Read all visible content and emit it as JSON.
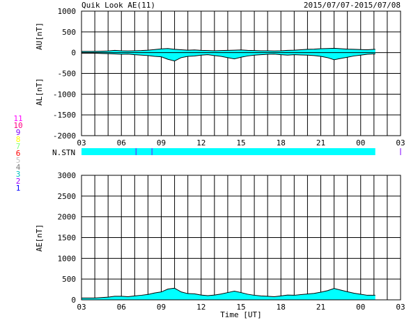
{
  "header": {
    "title": "Quik Look AE(11)",
    "date_range": "2015/07/07-2015/07/08"
  },
  "colors": {
    "fill": "#00ffff",
    "line": "#000000",
    "stn_bar": "#00ffff",
    "stn_tick": "#8000ff"
  },
  "station_legend": [
    {
      "label": "11",
      "color": "#ff00ff"
    },
    {
      "label": "10",
      "color": "#ff0080"
    },
    {
      "label": "9",
      "color": "#8000ff"
    },
    {
      "label": "8",
      "color": "#ffff00"
    },
    {
      "label": "7",
      "color": "#80ff80"
    },
    {
      "label": "6",
      "color": "#ff0000"
    },
    {
      "label": "5",
      "color": "#c0c0c0"
    },
    {
      "label": "4",
      "color": "#808080"
    },
    {
      "label": "3",
      "color": "#00c0c0"
    },
    {
      "label": "2",
      "color": "#a000ff"
    },
    {
      "label": "1",
      "color": "#0000ff"
    }
  ],
  "n_stn": {
    "label": "N.STN",
    "end_hour": 25.1,
    "tick_hours": [
      7.1,
      8.3,
      27.0
    ]
  },
  "chart_data": [
    {
      "type": "area",
      "name": "AU/AL",
      "ylabel_upper": "AU[nT]",
      "ylabel_lower": "AL[nT]",
      "xlabel": "",
      "xlim": [
        3,
        27
      ],
      "ylim": [
        -2000,
        1000
      ],
      "yticks": [
        1000,
        500,
        0,
        -500,
        -1000,
        -1500,
        -2000
      ],
      "xtick_labels": [
        "03",
        "06",
        "09",
        "12",
        "15",
        "18",
        "21",
        "00",
        "03"
      ],
      "grid": true,
      "x_hours": [
        3,
        3.5,
        4,
        4.5,
        5,
        5.5,
        6,
        6.5,
        7,
        7.5,
        8,
        8.5,
        9,
        9.5,
        10,
        10.5,
        11,
        11.5,
        12,
        12.5,
        13,
        13.5,
        14,
        14.5,
        15,
        15.5,
        16,
        16.5,
        17,
        17.5,
        18,
        18.5,
        19,
        19.5,
        20,
        20.5,
        21,
        21.5,
        22,
        22.5,
        23,
        23.5,
        24,
        24.5,
        25,
        25.1
      ],
      "au": [
        30,
        30,
        30,
        35,
        40,
        55,
        45,
        40,
        45,
        50,
        60,
        75,
        90,
        100,
        80,
        70,
        60,
        65,
        55,
        50,
        45,
        50,
        55,
        60,
        65,
        55,
        50,
        45,
        45,
        40,
        45,
        55,
        60,
        70,
        80,
        85,
        95,
        100,
        105,
        95,
        85,
        80,
        75,
        70,
        80,
        80
      ],
      "al": [
        -15,
        -15,
        -15,
        -20,
        -25,
        -30,
        -40,
        -35,
        -50,
        -60,
        -70,
        -90,
        -100,
        -160,
        -200,
        -120,
        -90,
        -80,
        -60,
        -50,
        -70,
        -90,
        -120,
        -150,
        -110,
        -80,
        -60,
        -50,
        -40,
        -35,
        -50,
        -60,
        -50,
        -55,
        -60,
        -70,
        -90,
        -120,
        -170,
        -140,
        -110,
        -80,
        -60,
        -40,
        -30,
        -30
      ]
    },
    {
      "type": "area",
      "name": "AE",
      "ylabel": "AE[nT]",
      "xlabel": "Time [UT]",
      "xlim": [
        3,
        27
      ],
      "ylim": [
        0,
        3000
      ],
      "yticks": [
        3000,
        2500,
        2000,
        1500,
        1000,
        500,
        0
      ],
      "xtick_labels": [
        "03",
        "06",
        "09",
        "12",
        "15",
        "18",
        "21",
        "00",
        "03"
      ],
      "grid": true,
      "x_hours": [
        3,
        3.5,
        4,
        4.5,
        5,
        5.5,
        6,
        6.5,
        7,
        7.5,
        8,
        8.5,
        9,
        9.5,
        10,
        10.5,
        11,
        11.5,
        12,
        12.5,
        13,
        13.5,
        14,
        14.5,
        15,
        15.5,
        16,
        16.5,
        17,
        17.5,
        18,
        18.5,
        19,
        19.5,
        20,
        20.5,
        21,
        21.5,
        22,
        22.5,
        23,
        23.5,
        24,
        24.5,
        25,
        25.1
      ],
      "values": [
        45,
        45,
        45,
        55,
        65,
        85,
        85,
        75,
        95,
        110,
        130,
        165,
        190,
        260,
        280,
        190,
        150,
        145,
        115,
        100,
        115,
        140,
        175,
        210,
        175,
        135,
        110,
        95,
        85,
        75,
        95,
        115,
        110,
        125,
        140,
        155,
        185,
        220,
        275,
        235,
        195,
        160,
        135,
        110,
        110,
        110
      ]
    }
  ]
}
